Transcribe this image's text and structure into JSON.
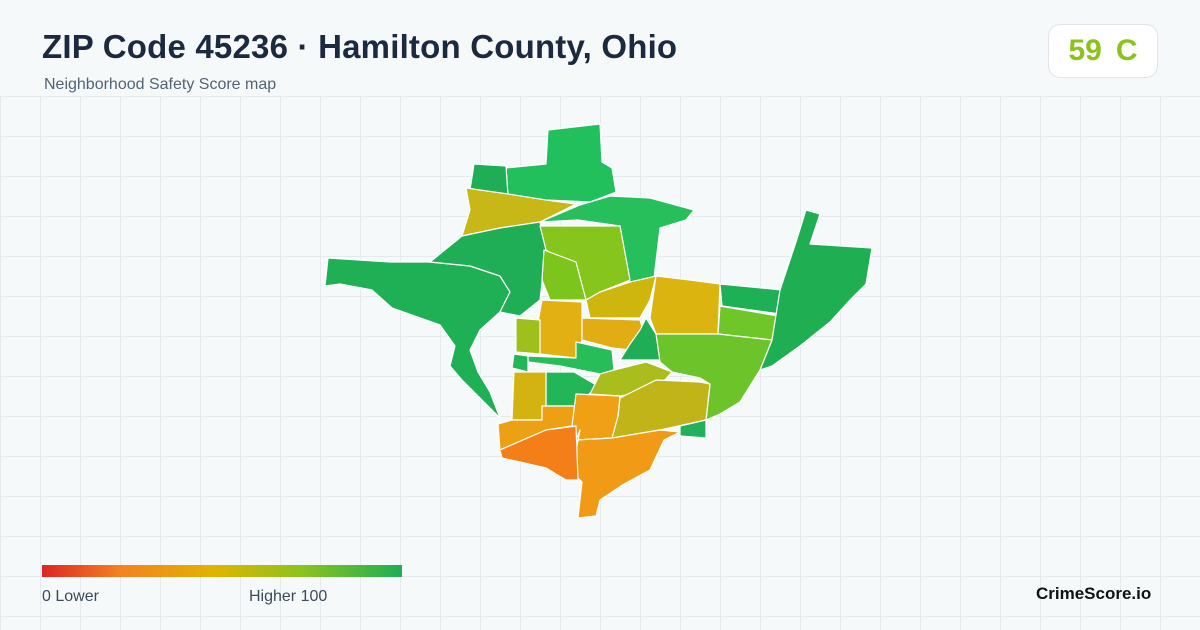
{
  "header": {
    "title": "ZIP Code 45236 · Hamilton County, Ohio",
    "subtitle": "Neighborhood Safety Score map"
  },
  "score": {
    "value": "59",
    "grade": "C",
    "color": "#8cc21e"
  },
  "legend": {
    "min_label": "0  Lower",
    "max_label": "Higher  100",
    "colors": [
      "#dc2626",
      "#f58220",
      "#e0b400",
      "#8cc21e",
      "#1fae56"
    ]
  },
  "footer": {
    "brand": "CrimeScore.io"
  },
  "map": {
    "regions": [
      {
        "id": "west-lobe",
        "score": 88,
        "color": "#1faf55"
      },
      {
        "id": "north-tower",
        "score": 90,
        "color": "#22c05c"
      },
      {
        "id": "north-strip",
        "score": 90,
        "color": "#27bf5c"
      },
      {
        "id": "northwest-corner",
        "score": 89,
        "color": "#1fae55"
      },
      {
        "id": "northwest-wedge",
        "score": 52,
        "color": "#c7b818"
      },
      {
        "id": "center-north",
        "score": 68,
        "color": "#85c51c"
      },
      {
        "id": "center-narrow",
        "score": 72,
        "color": "#7cc51d"
      },
      {
        "id": "center-yellow",
        "score": 45,
        "color": "#cfb60f"
      },
      {
        "id": "orange-a",
        "score": 42,
        "color": "#e2b012"
      },
      {
        "id": "mid-orange",
        "score": 40,
        "color": "#e2ad14"
      },
      {
        "id": "east-yellow",
        "score": 46,
        "color": "#dcb410"
      },
      {
        "id": "east-green-mid",
        "score": 78,
        "color": "#6fc628"
      },
      {
        "id": "east-green-top",
        "score": 88,
        "color": "#1db055"
      },
      {
        "id": "east-panel",
        "score": 86,
        "color": "#1fae52"
      },
      {
        "id": "center-green-strip",
        "score": 88,
        "color": "#27be5a"
      },
      {
        "id": "center-left-lime",
        "score": 62,
        "color": "#9fc01a"
      },
      {
        "id": "southeast-green",
        "score": 74,
        "color": "#6dc42a"
      },
      {
        "id": "south-olive",
        "score": 54,
        "color": "#a9be1c"
      },
      {
        "id": "south-mustard",
        "score": 50,
        "color": "#c0b418"
      },
      {
        "id": "south-left-yellow",
        "score": 46,
        "color": "#d3b312"
      },
      {
        "id": "southwest-orange",
        "score": 34,
        "color": "#eea015"
      },
      {
        "id": "south-orange-mid",
        "score": 36,
        "color": "#f0a015"
      },
      {
        "id": "south-orange-bottom",
        "score": 35,
        "color": "#f09a15"
      },
      {
        "id": "southwest-red-orange",
        "score": 24,
        "color": "#f47f18"
      },
      {
        "id": "south-green-tip",
        "score": 86,
        "color": "#22b05c"
      },
      {
        "id": "center-green-small",
        "score": 87,
        "color": "#22b659"
      }
    ]
  }
}
